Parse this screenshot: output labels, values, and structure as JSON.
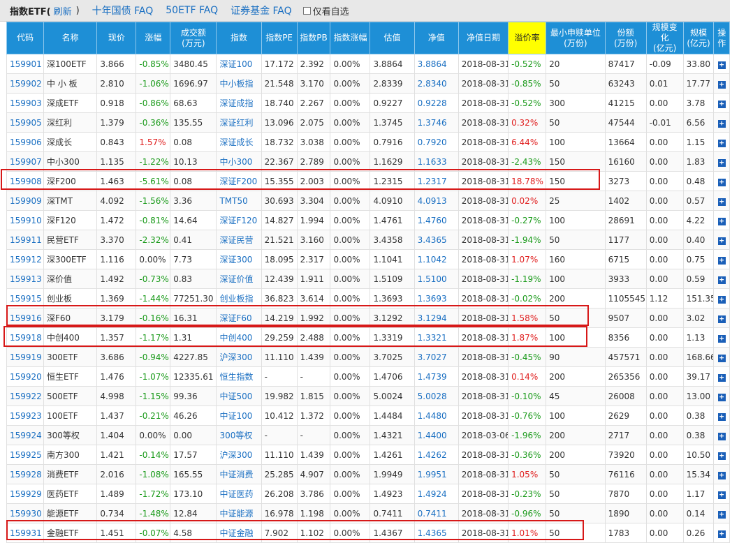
{
  "header": {
    "title": "指数ETF(",
    "refresh": "刷新",
    "close_paren": ")",
    "links": [
      "十年国债 FAQ",
      "50ETF FAQ",
      "证券基金 FAQ"
    ],
    "checkbox_label": "仅看自选"
  },
  "table": {
    "columns": [
      "代码",
      "名称",
      "现价",
      "涨幅",
      "成交额(万元)",
      "指数",
      "指数PE",
      "指数PB",
      "指数涨幅",
      "估值",
      "净值",
      "净值日期",
      "溢价率",
      "最小申赎单位(万份)",
      "份额(万份)",
      "规模变化(亿元)",
      "规模(亿元)",
      "操作"
    ],
    "rows": [
      [
        "159901",
        "深100ETF",
        "3.866",
        "-0.85%",
        "3480.45",
        "深证100",
        "17.172",
        "2.392",
        "0.00%",
        "3.8864",
        "3.8864",
        "2018-08-31",
        "-0.52%",
        "20",
        "87417",
        "-0.09",
        "33.80"
      ],
      [
        "159902",
        "中 小 板",
        "2.810",
        "-1.06%",
        "1696.97",
        "中小板指",
        "21.548",
        "3.170",
        "0.00%",
        "2.8339",
        "2.8340",
        "2018-08-31",
        "-0.85%",
        "50",
        "63243",
        "0.01",
        "17.77"
      ],
      [
        "159903",
        "深成ETF",
        "0.918",
        "-0.86%",
        "68.63",
        "深证成指",
        "18.740",
        "2.267",
        "0.00%",
        "0.9227",
        "0.9228",
        "2018-08-31",
        "-0.52%",
        "300",
        "41215",
        "0.00",
        "3.78"
      ],
      [
        "159905",
        "深红利",
        "1.379",
        "-0.36%",
        "135.55",
        "深证红利",
        "13.096",
        "2.075",
        "0.00%",
        "1.3745",
        "1.3746",
        "2018-08-31",
        "0.32%",
        "50",
        "47544",
        "-0.01",
        "6.56"
      ],
      [
        "159906",
        "深成长",
        "0.843",
        "1.57%",
        "0.08",
        "深证成长",
        "18.732",
        "3.038",
        "0.00%",
        "0.7916",
        "0.7920",
        "2018-08-31",
        "6.44%",
        "100",
        "13664",
        "0.00",
        "1.15"
      ],
      [
        "159907",
        "中小300",
        "1.135",
        "-1.22%",
        "10.13",
        "中小300",
        "22.367",
        "2.789",
        "0.00%",
        "1.1629",
        "1.1633",
        "2018-08-31",
        "-2.43%",
        "150",
        "16160",
        "0.00",
        "1.83"
      ],
      [
        "159908",
        "深F200",
        "1.463",
        "-5.61%",
        "0.08",
        "深证F200",
        "15.355",
        "2.003",
        "0.00%",
        "1.2315",
        "1.2317",
        "2018-08-31",
        "18.78%",
        "150",
        "3273",
        "0.00",
        "0.48"
      ],
      [
        "159909",
        "深TMT",
        "4.092",
        "-1.56%",
        "3.36",
        "TMT50",
        "30.693",
        "3.304",
        "0.00%",
        "4.0910",
        "4.0913",
        "2018-08-31",
        "0.02%",
        "25",
        "1402",
        "0.00",
        "0.57"
      ],
      [
        "159910",
        "深F120",
        "1.472",
        "-0.81%",
        "14.64",
        "深证F120",
        "14.827",
        "1.994",
        "0.00%",
        "1.4761",
        "1.4760",
        "2018-08-31",
        "-0.27%",
        "100",
        "28691",
        "0.00",
        "4.22"
      ],
      [
        "159911",
        "民营ETF",
        "3.370",
        "-2.32%",
        "0.41",
        "深证民营",
        "21.521",
        "3.160",
        "0.00%",
        "3.4358",
        "3.4365",
        "2018-08-31",
        "-1.94%",
        "50",
        "1177",
        "0.00",
        "0.40"
      ],
      [
        "159912",
        "深300ETF",
        "1.116",
        "0.00%",
        "7.73",
        "深证300",
        "18.095",
        "2.317",
        "0.00%",
        "1.1041",
        "1.1042",
        "2018-08-31",
        "1.07%",
        "160",
        "6715",
        "0.00",
        "0.75"
      ],
      [
        "159913",
        "深价值",
        "1.492",
        "-0.73%",
        "0.83",
        "深证价值",
        "12.439",
        "1.911",
        "0.00%",
        "1.5109",
        "1.5100",
        "2018-08-31",
        "-1.19%",
        "100",
        "3933",
        "0.00",
        "0.59"
      ],
      [
        "159915",
        "创业板",
        "1.369",
        "-1.44%",
        "77251.30",
        "创业板指",
        "36.823",
        "3.614",
        "0.00%",
        "1.3693",
        "1.3693",
        "2018-08-31",
        "-0.02%",
        "200",
        "1105545",
        "1.12",
        "151.35"
      ],
      [
        "159916",
        "深F60",
        "3.179",
        "-0.16%",
        "16.31",
        "深证F60",
        "14.219",
        "1.992",
        "0.00%",
        "3.1292",
        "3.1294",
        "2018-08-31",
        "1.58%",
        "50",
        "9507",
        "0.00",
        "3.02"
      ],
      [
        "159918",
        "中创400",
        "1.357",
        "-1.17%",
        "1.31",
        "中创400",
        "29.259",
        "2.488",
        "0.00%",
        "1.3319",
        "1.3321",
        "2018-08-31",
        "1.87%",
        "100",
        "8356",
        "0.00",
        "1.13"
      ],
      [
        "159919",
        "300ETF",
        "3.686",
        "-0.94%",
        "4227.85",
        "沪深300",
        "11.110",
        "1.439",
        "0.00%",
        "3.7025",
        "3.7027",
        "2018-08-31",
        "-0.45%",
        "90",
        "457571",
        "0.00",
        "168.66"
      ],
      [
        "159920",
        "恒生ETF",
        "1.476",
        "-1.07%",
        "12335.61",
        "恒生指数",
        "-",
        "-",
        "0.00%",
        "1.4706",
        "1.4739",
        "2018-08-31",
        "0.14%",
        "200",
        "265356",
        "0.00",
        "39.17"
      ],
      [
        "159922",
        "500ETF",
        "4.998",
        "-1.15%",
        "99.36",
        "中证500",
        "19.982",
        "1.815",
        "0.00%",
        "5.0024",
        "5.0028",
        "2018-08-31",
        "-0.10%",
        "45",
        "26008",
        "0.00",
        "13.00"
      ],
      [
        "159923",
        "100ETF",
        "1.437",
        "-0.21%",
        "46.26",
        "中证100",
        "10.412",
        "1.372",
        "0.00%",
        "1.4484",
        "1.4480",
        "2018-08-31",
        "-0.76%",
        "100",
        "2629",
        "0.00",
        "0.38"
      ],
      [
        "159924",
        "300等权",
        "1.404",
        "0.00%",
        "0.00",
        "300等权",
        "-",
        "-",
        "0.00%",
        "1.4321",
        "1.4400",
        "2018-03-06",
        "-1.96%",
        "200",
        "2717",
        "0.00",
        "0.38"
      ],
      [
        "159925",
        "南方300",
        "1.421",
        "-0.14%",
        "17.57",
        "沪深300",
        "11.110",
        "1.439",
        "0.00%",
        "1.4261",
        "1.4262",
        "2018-08-31",
        "-0.36%",
        "200",
        "73920",
        "0.00",
        "10.50"
      ],
      [
        "159928",
        "消费ETF",
        "2.016",
        "-1.08%",
        "165.55",
        "中证消费",
        "25.285",
        "4.907",
        "0.00%",
        "1.9949",
        "1.9951",
        "2018-08-31",
        "1.05%",
        "50",
        "76116",
        "0.00",
        "15.34"
      ],
      [
        "159929",
        "医药ETF",
        "1.489",
        "-1.72%",
        "173.10",
        "中证医药",
        "26.208",
        "3.786",
        "0.00%",
        "1.4923",
        "1.4924",
        "2018-08-31",
        "-0.23%",
        "50",
        "7870",
        "0.00",
        "1.17"
      ],
      [
        "159930",
        "能源ETF",
        "0.734",
        "-1.48%",
        "12.84",
        "中证能源",
        "16.978",
        "1.198",
        "0.00%",
        "0.7411",
        "0.7411",
        "2018-08-31",
        "-0.96%",
        "50",
        "1890",
        "0.00",
        "0.14"
      ],
      [
        "159931",
        "金融ETF",
        "1.451",
        "-0.07%",
        "4.58",
        "中证金融",
        "7.902",
        "1.102",
        "0.00%",
        "1.4367",
        "1.4365",
        "2018-08-31",
        "1.01%",
        "50",
        "1783",
        "0.00",
        "0.26"
      ]
    ],
    "op_icon": "+",
    "highlighted_codes": [
      "159908",
      "159916",
      "159918",
      "159931"
    ]
  },
  "colors": {
    "header_bg": "#1e8fd6",
    "premium_header_bg": "#ffff00",
    "link": "#1a6fc2",
    "up": "#e02020",
    "down": "#1a9a1a",
    "highlight_box": "#d71818"
  }
}
